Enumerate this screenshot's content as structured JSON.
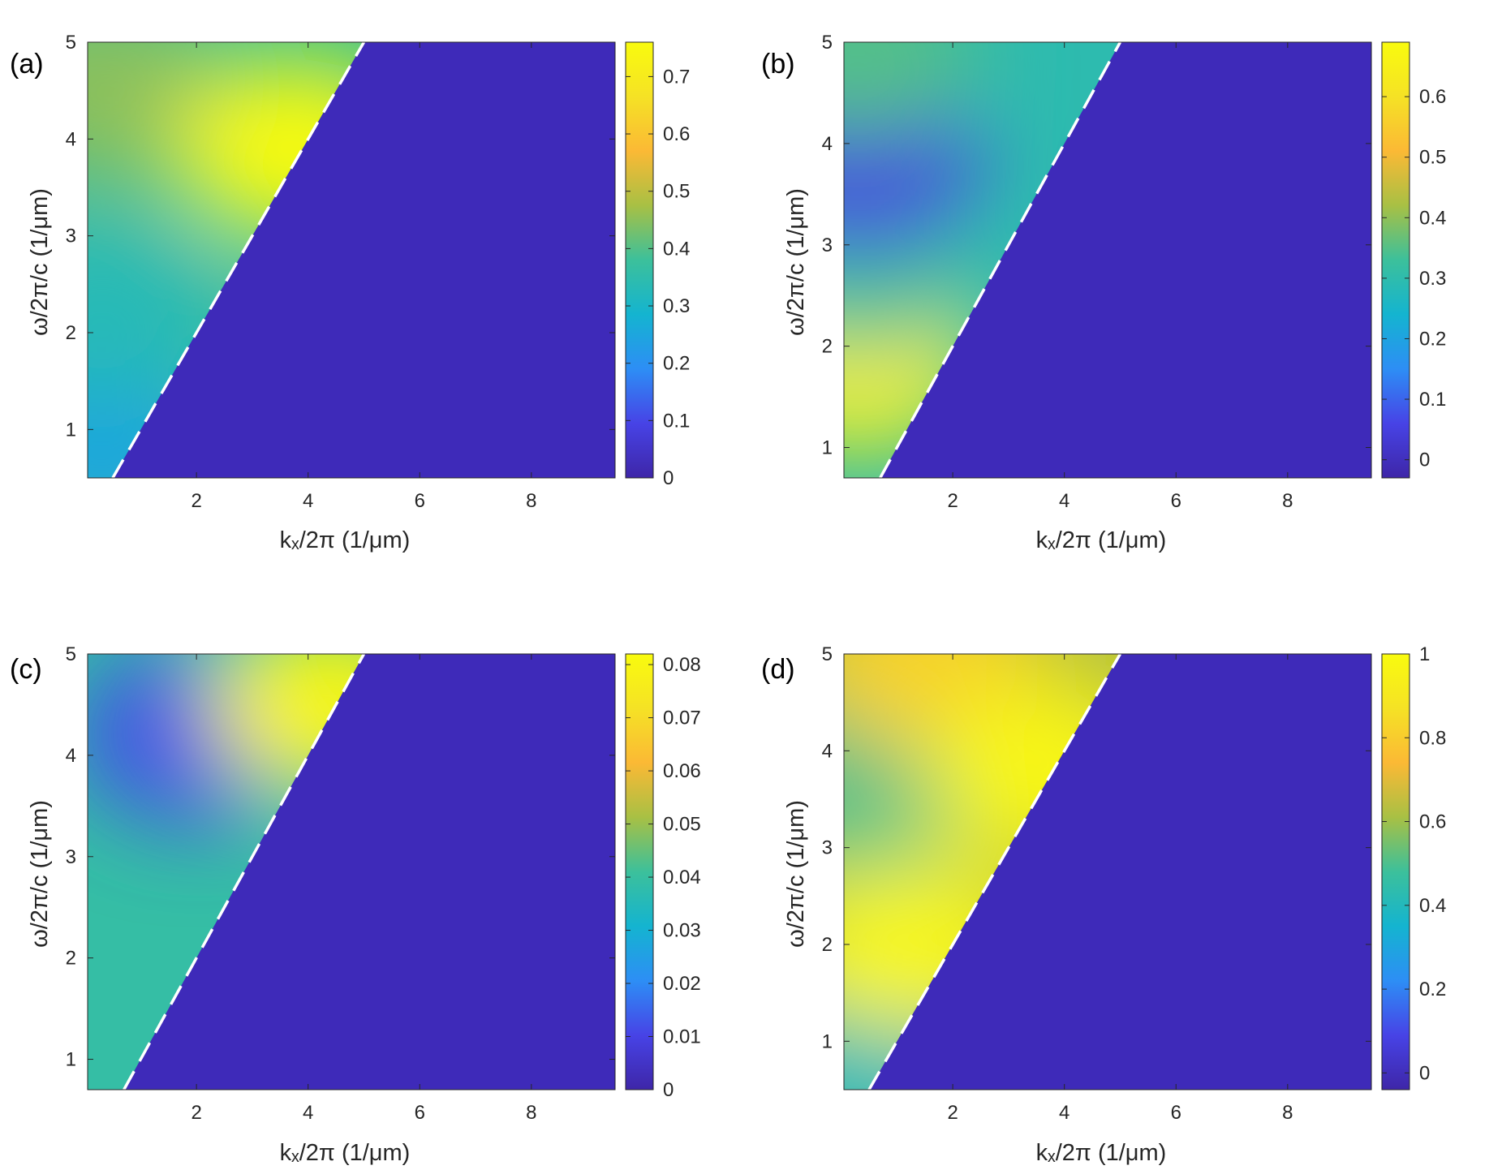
{
  "colors": {
    "background_region": "#3e2ab9",
    "frame": "#262626",
    "boundary_line": "#ffffff",
    "colormap": [
      "#3e26a8",
      "#4743e6",
      "#2d8ef5",
      "#14b4d0",
      "#3cc09b",
      "#a8c044",
      "#fbb935",
      "#f5e225",
      "#f9fb0e"
    ]
  },
  "chart_data": [
    {
      "type": "heatmap",
      "panel": "(a)",
      "xlabel": "kₓ/2π  (1/μm)",
      "ylabel": "ω/2π/c  (1/μm)",
      "xlim": [
        0.05,
        9.5
      ],
      "ylim": [
        0.5,
        5.0
      ],
      "xticks": [
        "2",
        "4",
        "6",
        "8"
      ],
      "yticks": [
        "1",
        "2",
        "3",
        "4",
        "5"
      ],
      "light_line": {
        "style": "dashed",
        "x": [
          0.5,
          5.0
        ],
        "y": [
          0.5,
          5.0
        ]
      },
      "colorbar": {
        "min": 0,
        "max": 0.76,
        "ticks": [
          "0",
          "0.1",
          "0.2",
          "0.3",
          "0.4",
          "0.5",
          "0.6",
          "0.7"
        ]
      },
      "features": [
        {
          "x": 0.3,
          "y": 0.8,
          "value": 0.25
        },
        {
          "x": 0.3,
          "y": 2.2,
          "value": 0.33
        },
        {
          "x": 0.3,
          "y": 4.5,
          "value": 0.45
        },
        {
          "x": 3.8,
          "y": 3.9,
          "value": 0.76
        }
      ]
    },
    {
      "type": "heatmap",
      "panel": "(b)",
      "xlabel": "kₓ/2π  (1/μm)",
      "ylabel": "ω/2π/c  (1/μm)",
      "xlim": [
        0.05,
        9.5
      ],
      "ylim": [
        0.7,
        5.0
      ],
      "xticks": [
        "2",
        "4",
        "6",
        "8"
      ],
      "yticks": [
        "1",
        "2",
        "3",
        "4",
        "5"
      ],
      "light_line": {
        "style": "dashed",
        "x": [
          0.7,
          5.0
        ],
        "y": [
          0.7,
          5.0
        ]
      },
      "colorbar": {
        "min": -0.03,
        "max": 0.69,
        "ticks": [
          "0",
          "0.1",
          "0.2",
          "0.3",
          "0.4",
          "0.5",
          "0.6"
        ]
      },
      "features": [
        {
          "x": 0.3,
          "y": 1.8,
          "value": 0.66
        },
        {
          "x": 0.3,
          "y": 2.8,
          "value": 0.33
        },
        {
          "x": 0.3,
          "y": 3.8,
          "value": 0.05
        },
        {
          "x": 0.3,
          "y": 4.9,
          "value": 0.35
        }
      ]
    },
    {
      "type": "heatmap",
      "panel": "(c)",
      "xlabel": "kₓ/2π  (1/μm)",
      "ylabel": "ω/2π/c  (1/μm)",
      "xlim": [
        0.05,
        9.5
      ],
      "ylim": [
        0.7,
        5.0
      ],
      "xticks": [
        "2",
        "4",
        "6",
        "8"
      ],
      "yticks": [
        "1",
        "2",
        "3",
        "4",
        "5"
      ],
      "light_line": {
        "style": "dashed",
        "x": [
          0.7,
          5.0
        ],
        "y": [
          0.7,
          5.0
        ]
      },
      "colorbar": {
        "min": 0,
        "max": 0.082,
        "ticks": [
          "0",
          "0.01",
          "0.02",
          "0.03",
          "0.04",
          "0.05",
          "0.06",
          "0.07",
          "0.08"
        ]
      },
      "features": [
        {
          "x": 2.0,
          "y": 4.2,
          "value": 0.012
        },
        {
          "x": 4.4,
          "y": 4.5,
          "value": 0.08
        }
      ]
    },
    {
      "type": "heatmap",
      "panel": "(d)",
      "xlabel": "kₓ/2π  (1/μm)",
      "ylabel": "ω/2π/c  (1/μm)",
      "xlim": [
        0.05,
        9.5
      ],
      "ylim": [
        0.5,
        5.0
      ],
      "xticks": [
        "2",
        "4",
        "6",
        "8"
      ],
      "yticks": [
        "1",
        "2",
        "3",
        "4",
        "5"
      ],
      "light_line": {
        "style": "dashed",
        "x": [
          0.5,
          5.0
        ],
        "y": [
          0.5,
          5.0
        ]
      },
      "colorbar": {
        "min": -0.04,
        "max": 1.0,
        "ticks": [
          "0",
          "0.2",
          "0.4",
          "0.6",
          "0.8",
          "1"
        ]
      },
      "features": [
        {
          "x": 0.3,
          "y": 0.6,
          "value": 0.4
        },
        {
          "x": 1.2,
          "y": 2.0,
          "value": 0.98
        },
        {
          "x": 0.4,
          "y": 3.7,
          "value": 0.5
        },
        {
          "x": 1.5,
          "y": 4.9,
          "value": 0.82
        },
        {
          "x": 3.7,
          "y": 3.8,
          "value": 0.98
        }
      ]
    }
  ]
}
